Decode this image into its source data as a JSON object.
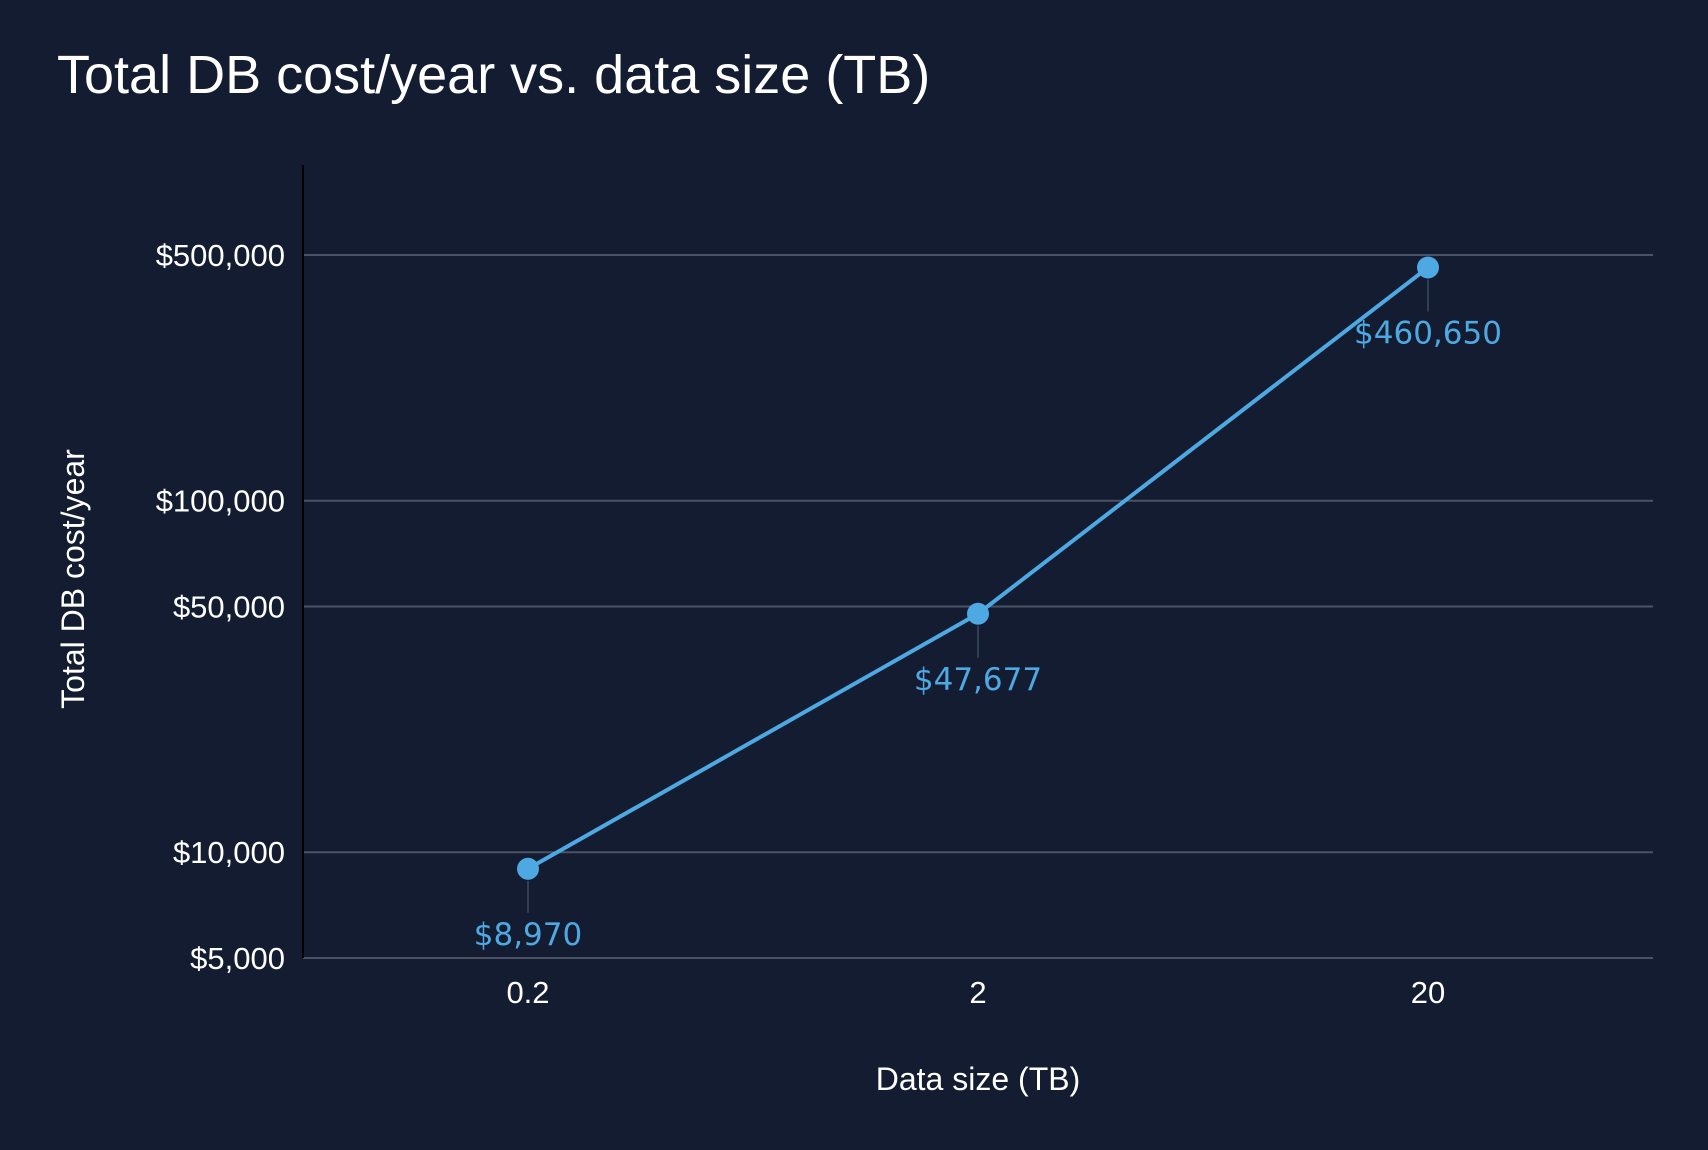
{
  "title": "Total DB cost/year vs. data size (TB)",
  "colors": {
    "background": "#131c30",
    "series": "#4ea8e2",
    "gridline": "#4a5366",
    "axis": "#000000",
    "text": "#ffffff"
  },
  "chart_data": {
    "type": "line",
    "title": "Total DB cost/year vs. data size (TB)",
    "xlabel": "Data size (TB)",
    "ylabel": "Total DB cost/year",
    "x_scale": "categorical",
    "y_scale": "log",
    "ylim": [
      5000,
      800000
    ],
    "grid": true,
    "legend": "none",
    "categories": [
      "0.2",
      "2",
      "20"
    ],
    "y_ticks": [
      {
        "value": 5000,
        "label": "$5,000"
      },
      {
        "value": 10000,
        "label": "$10,000"
      },
      {
        "value": 50000,
        "label": "$50,000"
      },
      {
        "value": 100000,
        "label": "$100,000"
      },
      {
        "value": 500000,
        "label": "$500,000"
      }
    ],
    "series": [
      {
        "values": [
          8970,
          47677,
          460650
        ],
        "data_labels": [
          "$8,970",
          "$47,677",
          "$460,650"
        ]
      }
    ]
  }
}
